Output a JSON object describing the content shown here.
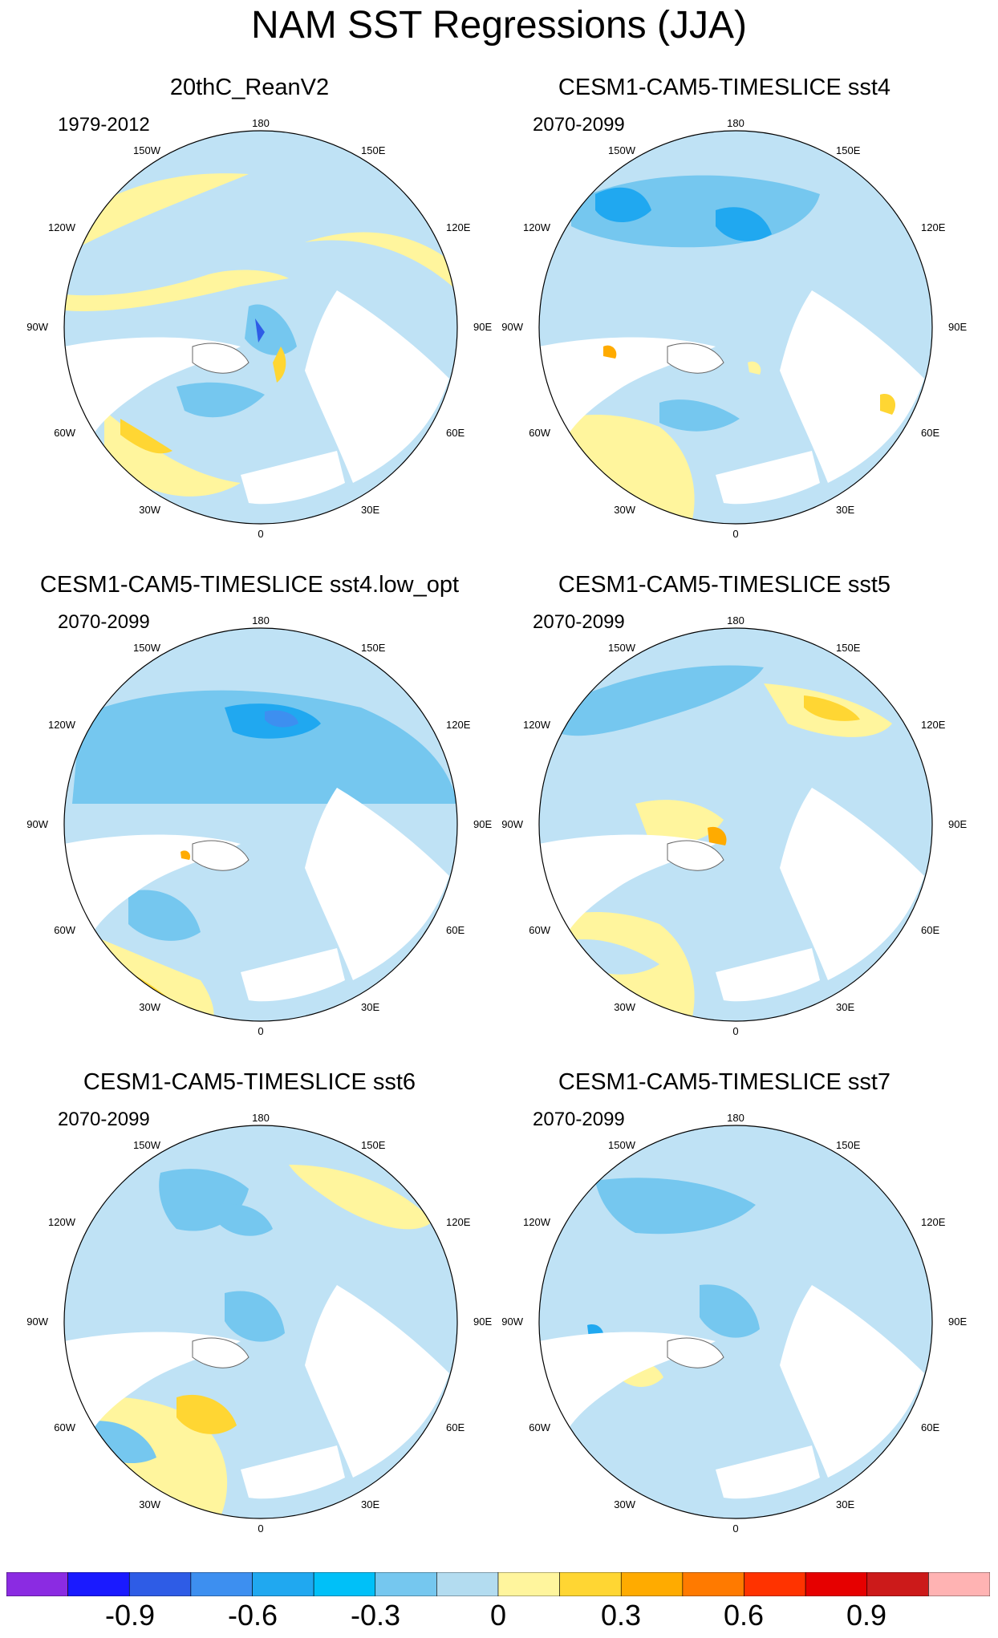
{
  "title": "NAM SST Regressions (JJA)",
  "longitude_labels": [
    "180",
    "150E",
    "120E",
    "90E",
    "60E",
    "30E",
    "0",
    "30W",
    "60W",
    "90W",
    "120W",
    "150W"
  ],
  "panels": [
    {
      "title": "20thC_ReanV2",
      "period": "1979-2012",
      "background": "#bfe2f5"
    },
    {
      "title": "CESM1-CAM5-TIMESLICE sst4",
      "period": "2070-2099",
      "background": "#bfe2f5"
    },
    {
      "title": "CESM1-CAM5-TIMESLICE sst4.low_opt",
      "period": "2070-2099",
      "background": "#bfe2f5"
    },
    {
      "title": "CESM1-CAM5-TIMESLICE sst5",
      "period": "2070-2099",
      "background": "#bfe2f5"
    },
    {
      "title": "CESM1-CAM5-TIMESLICE sst6",
      "period": "2070-2099",
      "background": "#bfe2f5"
    },
    {
      "title": "CESM1-CAM5-TIMESLICE sst7",
      "period": "2070-2099",
      "background": "#bfe2f5"
    }
  ],
  "colorbar": {
    "colors": [
      "#8b2be2",
      "#1a1aff",
      "#2e5ce6",
      "#3d8ff0",
      "#20a8f0",
      "#00c0f8",
      "#75c7ef",
      "#b3dcf0",
      "#fff59d",
      "#ffd633",
      "#ffab00",
      "#ff7a00",
      "#ff3300",
      "#e60000",
      "#cc1a1a",
      "#ffb3b3"
    ],
    "labels": [
      "-0.9",
      "-0.6",
      "-0.3",
      "0",
      "0.3",
      "0.6",
      "0.9"
    ]
  }
}
